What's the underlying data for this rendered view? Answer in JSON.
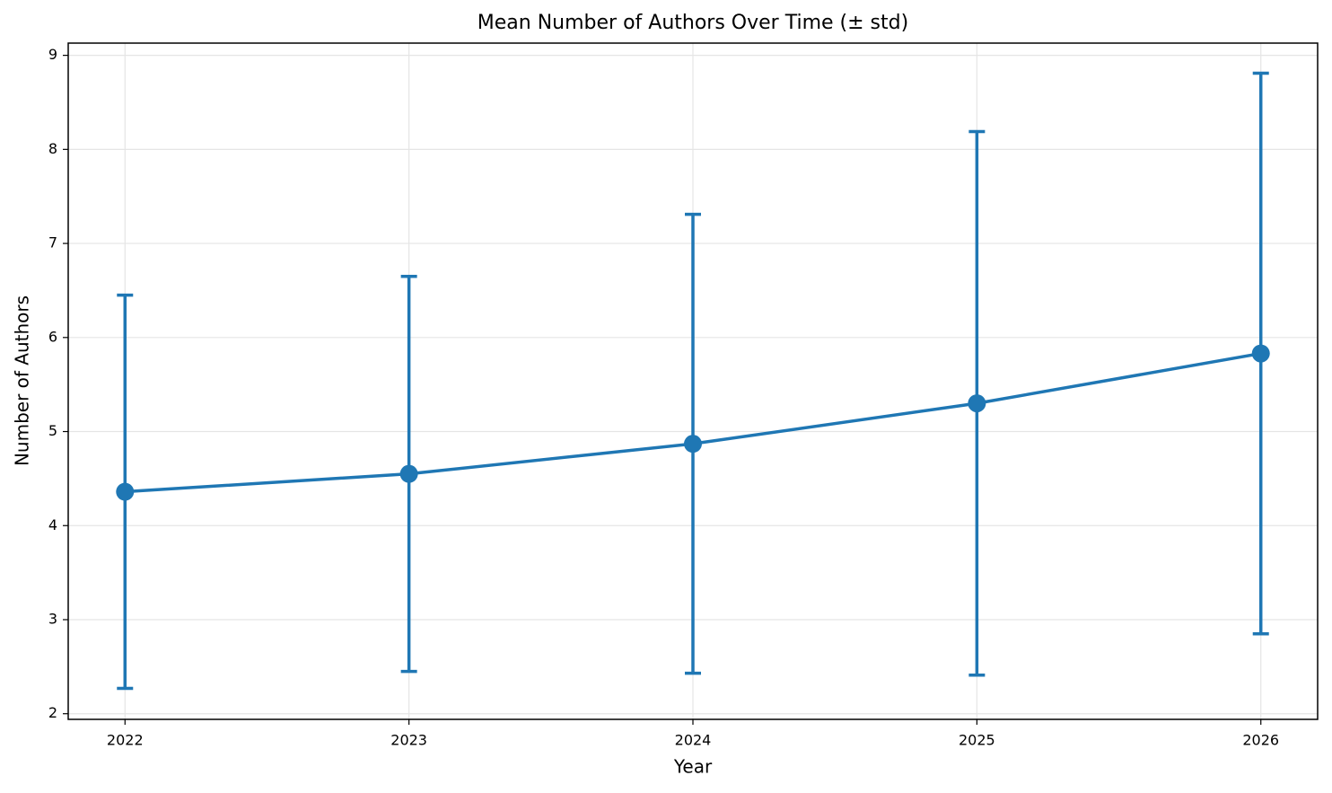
{
  "chart_data": {
    "type": "line",
    "title": "Mean Number of Authors Over Time (± std)",
    "xlabel": "Year",
    "ylabel": "Number of Authors",
    "x": [
      2022,
      2023,
      2024,
      2025,
      2026
    ],
    "values": [
      4.36,
      4.55,
      4.87,
      5.3,
      5.83
    ],
    "errors": [
      2.09,
      2.1,
      2.44,
      2.89,
      2.98
    ],
    "color": "#1f77b4",
    "xlim": [
      2021.8,
      2026.2
    ],
    "xticks": [
      2022,
      2023,
      2024,
      2025,
      2026
    ],
    "ylim": [
      1.94,
      9.13
    ],
    "yticks": [
      2,
      3,
      4,
      5,
      6,
      7,
      8,
      9
    ],
    "grid": true
  }
}
